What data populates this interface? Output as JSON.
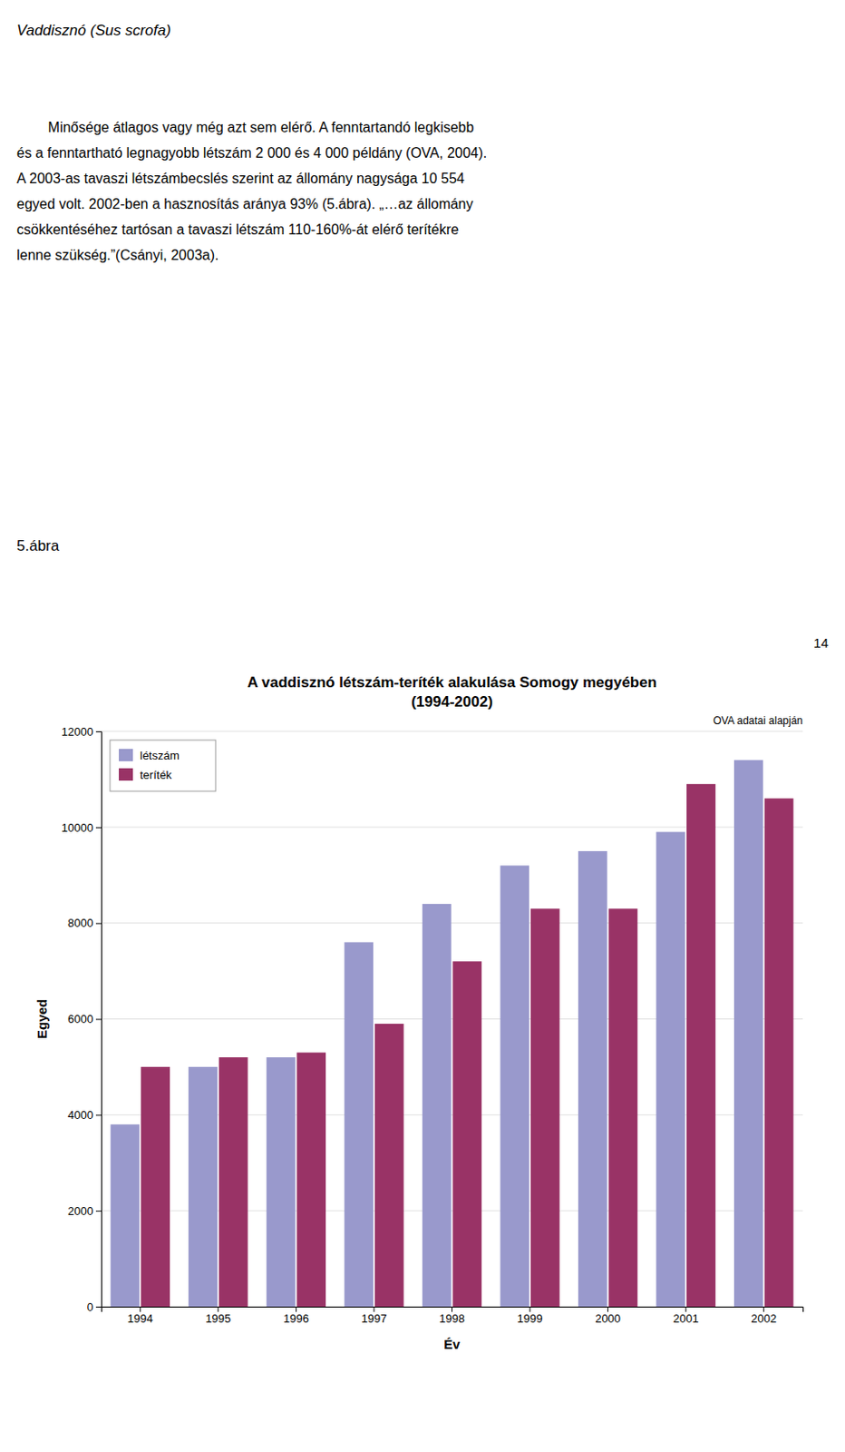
{
  "header": "Vaddisznó (Sus scrofa)",
  "paragraph": [
    "        Minősége átlagos vagy még azt sem elérő. A fenntartandó legkisebb",
    "és a fenntartható legnagyobb létszám 2 000 és 4 000 példány (OVA, 2004).",
    "A 2003-as tavaszi létszámbecslés szerint az állomány nagysága 10 554",
    "egyed volt. 2002-ben a hasznosítás aránya 93% (5.ábra). „…az állomány",
    "csökkentéséhez tartósan a tavaszi létszám 110-160%-át elérő terítékre",
    "lenne szükség.”(Csányi, 2003a)."
  ],
  "figure_label": "5.ábra",
  "page_number": "14",
  "chart_data": {
    "type": "bar",
    "title": "A vaddisznó létszám-teríték alakulása Somogy megyében",
    "subtitle": "(1994-2002)",
    "annotations": [
      "OVA adatai alapján"
    ],
    "xlabel": "Év",
    "ylabel": "Egyed",
    "categories": [
      "1994",
      "1995",
      "1996",
      "1997",
      "1998",
      "1999",
      "2000",
      "2001",
      "2002"
    ],
    "series": [
      {
        "name": "létszám",
        "color": "#9999CC",
        "values": [
          3800,
          5000,
          5200,
          7600,
          8400,
          9200,
          9500,
          9900,
          11400
        ]
      },
      {
        "name": "teríték",
        "color": "#993366",
        "values": [
          5000,
          5200,
          5300,
          5900,
          7200,
          8300,
          8300,
          10900,
          10600
        ]
      }
    ],
    "ylim": [
      0,
      12000
    ],
    "yticks": [
      0,
      2000,
      4000,
      6000,
      8000,
      10000,
      12000
    ],
    "grid": true,
    "legend": "upper left"
  }
}
